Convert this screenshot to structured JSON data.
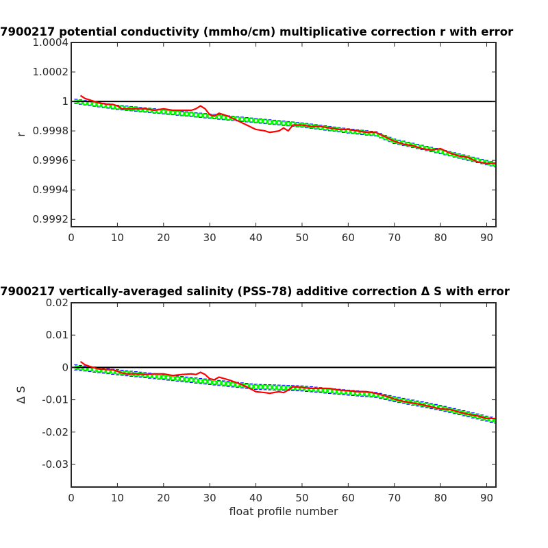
{
  "chart_data": [
    {
      "type": "line",
      "title": "7900217 potential conductivity (mmho/cm) multiplicative correction r with error",
      "xlabel": "",
      "ylabel": "r",
      "xlim": [
        0,
        92
      ],
      "ylim": [
        0.99915,
        1.0004
      ],
      "xticks": [
        0,
        10,
        20,
        30,
        40,
        50,
        60,
        70,
        80,
        90
      ],
      "xtick_labels": [
        "0",
        "10",
        "20",
        "30",
        "40",
        "50",
        "60",
        "70",
        "80",
        "90"
      ],
      "yticks": [
        0.9992,
        0.9994,
        0.9996,
        0.9998,
        1.0,
        1.0002,
        1.0004
      ],
      "ytick_labels": [
        "0.9992",
        "0.9994",
        "0.9996",
        "0.9998",
        "1",
        "1.0002",
        "1.0004"
      ],
      "grid": false,
      "reference_line": 1.0,
      "colors": {
        "reference": "#000000",
        "fit": "#00ff00",
        "error_bars": "#0000ff",
        "profile": "#ff0000"
      },
      "error": 1.5e-05,
      "series": [
        {
          "role": "fit",
          "points": [
            [
              1,
              1.0
            ],
            [
              10,
              0.99996
            ],
            [
              20,
              0.99993
            ],
            [
              30,
              0.9999
            ],
            [
              40,
              0.99987
            ],
            [
              50,
              0.99984
            ],
            [
              60,
              0.9998
            ],
            [
              66,
              0.99978
            ],
            [
              70,
              0.99973
            ],
            [
              80,
              0.99966
            ],
            [
              92,
              0.99957
            ]
          ]
        },
        {
          "role": "profile",
          "points": [
            [
              2,
              1.00004
            ],
            [
              3,
              1.00002
            ],
            [
              4,
              1.00001
            ],
            [
              6,
              0.99999
            ],
            [
              8,
              0.99998
            ],
            [
              9,
              0.99998
            ],
            [
              10,
              0.99997
            ],
            [
              11,
              0.99995
            ],
            [
              12,
              0.99995
            ],
            [
              14,
              0.99995
            ],
            [
              16,
              0.99995
            ],
            [
              18,
              0.99994
            ],
            [
              20,
              0.99995
            ],
            [
              22,
              0.99994
            ],
            [
              24,
              0.99994
            ],
            [
              26,
              0.99994
            ],
            [
              27,
              0.99995
            ],
            [
              28,
              0.99997
            ],
            [
              29,
              0.99995
            ],
            [
              30,
              0.99991
            ],
            [
              31,
              0.9999
            ],
            [
              32,
              0.99992
            ],
            [
              34,
              0.9999
            ],
            [
              36,
              0.99987
            ],
            [
              38,
              0.99984
            ],
            [
              40,
              0.99981
            ],
            [
              42,
              0.9998
            ],
            [
              43,
              0.99979
            ],
            [
              45,
              0.9998
            ],
            [
              46,
              0.99982
            ],
            [
              47,
              0.9998
            ],
            [
              48,
              0.99984
            ],
            [
              50,
              0.99984
            ],
            [
              52,
              0.99983
            ],
            [
              54,
              0.99983
            ],
            [
              56,
              0.99982
            ],
            [
              58,
              0.99981
            ],
            [
              60,
              0.99981
            ],
            [
              62,
              0.9998
            ],
            [
              64,
              0.99979
            ],
            [
              66,
              0.99979
            ],
            [
              68,
              0.99976
            ],
            [
              70,
              0.99973
            ],
            [
              72,
              0.99971
            ],
            [
              74,
              0.9997
            ],
            [
              76,
              0.99968
            ],
            [
              78,
              0.99967
            ],
            [
              80,
              0.99968
            ],
            [
              82,
              0.99965
            ],
            [
              84,
              0.99963
            ],
            [
              86,
              0.99962
            ],
            [
              88,
              0.99959
            ],
            [
              90,
              0.99958
            ],
            [
              92,
              0.99958
            ]
          ]
        }
      ]
    },
    {
      "type": "line",
      "title": "7900217 vertically-averaged salinity (PSS-78) additive correction Δ S with error",
      "xlabel": "float profile number",
      "ylabel": "Δ S",
      "xlim": [
        0,
        92
      ],
      "ylim": [
        -0.037,
        0.02
      ],
      "xticks": [
        0,
        10,
        20,
        30,
        40,
        50,
        60,
        70,
        80,
        90
      ],
      "xtick_labels": [
        "0",
        "10",
        "20",
        "30",
        "40",
        "50",
        "60",
        "70",
        "80",
        "90"
      ],
      "yticks": [
        -0.03,
        -0.02,
        -0.01,
        0,
        0.01,
        0.02
      ],
      "ytick_labels": [
        "-0.03",
        "-0.02",
        "-0.01",
        "0",
        "0.01",
        "0.02"
      ],
      "grid": false,
      "reference_line": 0,
      "colors": {
        "reference": "#000000",
        "fit": "#00ff00",
        "error_bars": "#0000ff",
        "profile": "#ff0000"
      },
      "error": 0.0008,
      "series": [
        {
          "role": "fit",
          "points": [
            [
              1,
              0.0
            ],
            [
              10,
              -0.0015
            ],
            [
              20,
              -0.003
            ],
            [
              30,
              -0.0045
            ],
            [
              40,
              -0.006
            ],
            [
              50,
              -0.0065
            ],
            [
              60,
              -0.0078
            ],
            [
              66,
              -0.0085
            ],
            [
              70,
              -0.0098
            ],
            [
              80,
              -0.0125
            ],
            [
              92,
              -0.0165
            ]
          ]
        },
        {
          "role": "profile",
          "points": [
            [
              2,
              0.0018
            ],
            [
              3,
              0.0008
            ],
            [
              4,
              0.0003
            ],
            [
              6,
              -0.0005
            ],
            [
              8,
              -0.0007
            ],
            [
              9,
              -0.0007
            ],
            [
              10,
              -0.0012
            ],
            [
              11,
              -0.0017
            ],
            [
              12,
              -0.002
            ],
            [
              14,
              -0.002
            ],
            [
              16,
              -0.0022
            ],
            [
              18,
              -0.002
            ],
            [
              20,
              -0.002
            ],
            [
              22,
              -0.0025
            ],
            [
              24,
              -0.0022
            ],
            [
              26,
              -0.002
            ],
            [
              27,
              -0.0022
            ],
            [
              28,
              -0.0015
            ],
            [
              29,
              -0.0022
            ],
            [
              30,
              -0.0035
            ],
            [
              31,
              -0.0038
            ],
            [
              32,
              -0.003
            ],
            [
              34,
              -0.0038
            ],
            [
              36,
              -0.0048
            ],
            [
              38,
              -0.006
            ],
            [
              40,
              -0.0075
            ],
            [
              42,
              -0.0078
            ],
            [
              43,
              -0.008
            ],
            [
              45,
              -0.0075
            ],
            [
              46,
              -0.0078
            ],
            [
              47,
              -0.007
            ],
            [
              48,
              -0.006
            ],
            [
              50,
              -0.0062
            ],
            [
              52,
              -0.0065
            ],
            [
              54,
              -0.0065
            ],
            [
              56,
              -0.0065
            ],
            [
              58,
              -0.007
            ],
            [
              60,
              -0.0072
            ],
            [
              62,
              -0.0075
            ],
            [
              64,
              -0.0075
            ],
            [
              66,
              -0.008
            ],
            [
              68,
              -0.0088
            ],
            [
              70,
              -0.0098
            ],
            [
              72,
              -0.0105
            ],
            [
              74,
              -0.011
            ],
            [
              76,
              -0.0115
            ],
            [
              78,
              -0.0122
            ],
            [
              80,
              -0.0128
            ],
            [
              82,
              -0.013
            ],
            [
              84,
              -0.0138
            ],
            [
              86,
              -0.0145
            ],
            [
              88,
              -0.015
            ],
            [
              90,
              -0.0158
            ],
            [
              92,
              -0.0158
            ]
          ]
        }
      ]
    }
  ]
}
